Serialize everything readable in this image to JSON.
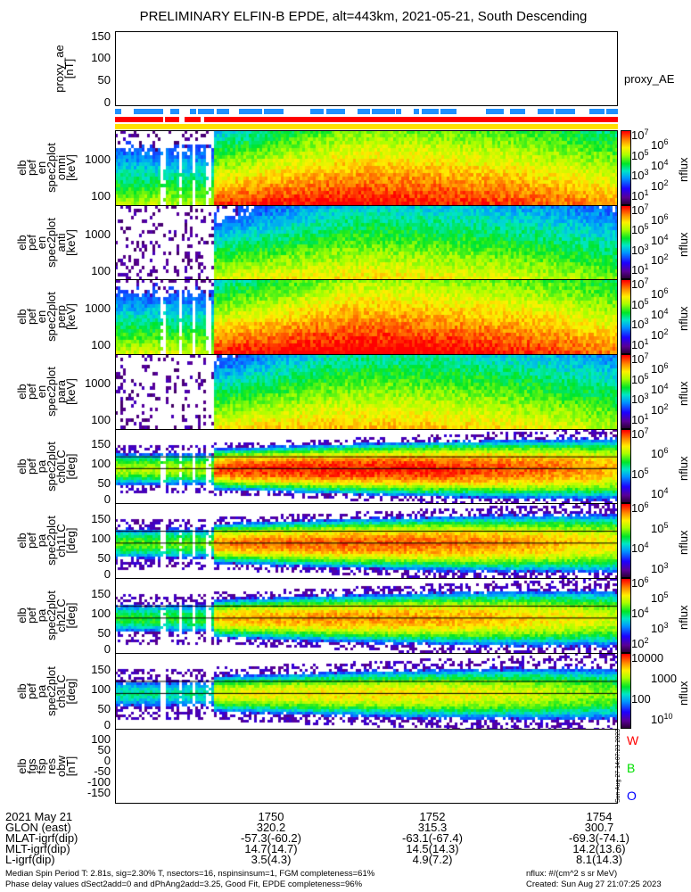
{
  "title": "PRELIMINARY ELFIN-B EPDE, alt=443km, 2021-05-21, South Descending",
  "chart_data": {
    "type": "line+heatmap",
    "x_range_min": [
      48.12,
      54.2
    ],
    "x_ticks": [
      "1750",
      "1752",
      "1754"
    ],
    "x_tick_values": [
      50,
      52,
      54
    ],
    "proxy_ae": {
      "ylabel": [
        "proxy_ae",
        "[nT]"
      ],
      "yticks": [
        "150",
        "100",
        "50",
        "0"
      ],
      "ylim": [
        0,
        165
      ],
      "legend": "proxy_AE",
      "points": [
        [
          48.12,
          32
        ],
        [
          48.4,
          32
        ],
        [
          48.4,
          35
        ],
        [
          49.1,
          35
        ],
        [
          49.1,
          38
        ],
        [
          50.2,
          38
        ],
        [
          50.2,
          40
        ],
        [
          51.3,
          40
        ],
        [
          51.3,
          42
        ],
        [
          54.2,
          42
        ]
      ]
    },
    "flag_bars": {
      "colors": [
        "#1e90ff",
        "#ff0000",
        "#ffe000"
      ],
      "blue_segments": [
        [
          48.12,
          48.2
        ],
        [
          48.35,
          48.7
        ],
        [
          48.79,
          48.9
        ],
        [
          49.03,
          49.1
        ],
        [
          49.12,
          49.32
        ],
        [
          49.35,
          49.5
        ],
        [
          49.62,
          49.9
        ],
        [
          49.92,
          50.16
        ],
        [
          50.48,
          50.64
        ],
        [
          50.67,
          50.9
        ],
        [
          51.05,
          51.2
        ],
        [
          51.23,
          51.5
        ],
        [
          51.52,
          51.58
        ],
        [
          51.73,
          51.8
        ],
        [
          51.83,
          52.03
        ],
        [
          52.05,
          52.25
        ],
        [
          52.6,
          52.82
        ],
        [
          52.9,
          53.08
        ],
        [
          53.23,
          53.42
        ],
        [
          53.45,
          53.68
        ],
        [
          53.85,
          54.04
        ],
        [
          54.06,
          54.2
        ]
      ],
      "red_segments": [
        [
          48.12,
          48.7
        ],
        [
          48.72,
          48.9
        ],
        [
          48.96,
          49.15
        ],
        [
          49.2,
          54.2
        ]
      ],
      "yellow_segments": [
        [
          48.12,
          54.2
        ]
      ]
    },
    "spectrograms": [
      {
        "ylabel": [
          "elb",
          "pef",
          "en",
          "spec2plot",
          "omni",
          "[keV]"
        ],
        "yticks": [
          "1000",
          "100"
        ],
        "kind": "energy",
        "level": 0,
        "cbar": [
          "7",
          "6",
          "5",
          "4",
          "3",
          "2",
          "1"
        ],
        "cbar_label": "nflux"
      },
      {
        "ylabel": [
          "elb",
          "pef",
          "en",
          "spec2plot",
          "anti",
          "[keV]"
        ],
        "yticks": [
          "1000",
          "100"
        ],
        "kind": "energy",
        "level": -1.3,
        "cbar": [
          "7",
          "6",
          "5",
          "4",
          "3",
          "2",
          "1"
        ],
        "cbar_label": "nflux"
      },
      {
        "ylabel": [
          "elb",
          "pef",
          "en",
          "spec2plot",
          "perp",
          "[keV]"
        ],
        "yticks": [
          "1000",
          "100"
        ],
        "kind": "energy",
        "level": 0.2,
        "cbar": [
          "7",
          "6",
          "5",
          "4",
          "3",
          "2",
          "1"
        ],
        "cbar_label": "nflux"
      },
      {
        "ylabel": [
          "elb",
          "pef",
          "en",
          "spec2plot",
          "para",
          "[keV]"
        ],
        "yticks": [
          "1000",
          "100"
        ],
        "kind": "energy",
        "level": -1.0,
        "cbar": [
          "7",
          "6",
          "5",
          "4",
          "3",
          "2",
          "1"
        ],
        "cbar_label": "nflux"
      },
      {
        "ylabel": [
          "elb",
          "pef",
          "pa",
          "spec2plot",
          "ch0LC",
          "[deg]"
        ],
        "yticks": [
          "150",
          "100",
          "50",
          "0"
        ],
        "kind": "pa",
        "level": 0.1,
        "cbar": [
          "7",
          "6",
          "5",
          "4"
        ],
        "cbar_label": "nflux"
      },
      {
        "ylabel": [
          "elb",
          "pef",
          "pa",
          "spec2plot",
          "ch1LC",
          "[deg]"
        ],
        "yticks": [
          "150",
          "100",
          "50",
          "0"
        ],
        "kind": "pa",
        "level": -0.3,
        "cbar": [
          "6",
          "5",
          "4",
          "3"
        ],
        "cbar_label": "nflux"
      },
      {
        "ylabel": [
          "elb",
          "pef",
          "pa",
          "spec2plot",
          "ch2LC",
          "[deg]"
        ],
        "yticks": [
          "150",
          "100",
          "50",
          "0"
        ],
        "kind": "pa",
        "level": -0.6,
        "cbar": [
          "6",
          "5",
          "4",
          "3",
          "2"
        ],
        "cbar_label": "nflux"
      },
      {
        "ylabel": [
          "elb",
          "pef",
          "pa",
          "spec2plot",
          "ch3LC",
          "[deg]"
        ],
        "yticks": [
          "150",
          "100",
          "50",
          "0"
        ],
        "kind": "pa",
        "level": -1.1,
        "cbar": [
          "10000",
          "1000",
          "100",
          "10"
        ],
        "cbar_label": "nflux"
      }
    ],
    "fgs": {
      "ylabel": [
        "elb",
        "fgs",
        "fsp",
        "res",
        "obw",
        "[nT]"
      ],
      "yticks": [
        "100",
        "50",
        "0",
        "-50",
        "-100",
        "-150"
      ],
      "ylim": [
        -160,
        110
      ],
      "series": [
        {
          "name": "W",
          "color": "#ff0000",
          "points": [
            [
              48.12,
              -15
            ],
            [
              48.42,
              -40
            ],
            [
              48.51,
              60
            ],
            [
              48.61,
              -70
            ],
            [
              49.18,
              35
            ],
            [
              49.29,
              -45
            ],
            [
              49.47,
              -15
            ],
            [
              49.77,
              -30
            ],
            [
              49.86,
              20
            ],
            [
              49.93,
              0
            ],
            [
              50.08,
              100
            ],
            [
              50.16,
              5
            ],
            [
              50.75,
              -15
            ],
            [
              50.82,
              10
            ],
            [
              51.13,
              30
            ],
            [
              51.32,
              65
            ],
            [
              51.43,
              -20
            ],
            [
              51.88,
              -35
            ],
            [
              52.13,
              -90
            ],
            [
              52.2,
              -25
            ],
            [
              52.5,
              -35
            ],
            [
              52.56,
              25
            ],
            [
              52.6,
              -15
            ],
            [
              52.8,
              -10
            ],
            [
              52.9,
              45
            ],
            [
              53.23,
              25
            ],
            [
              53.28,
              -10
            ],
            [
              53.42,
              -5
            ],
            [
              53.71,
              -5
            ],
            [
              53.9,
              -25
            ],
            [
              54.03,
              25
            ],
            [
              54.19,
              5
            ]
          ]
        },
        {
          "name": "B",
          "color": "#00e000",
          "points": [
            [
              48.12,
              -125
            ],
            [
              48.42,
              -30
            ],
            [
              48.5,
              -25
            ],
            [
              48.58,
              5
            ],
            [
              49.18,
              40
            ],
            [
              49.29,
              35
            ],
            [
              49.47,
              30
            ],
            [
              49.77,
              35
            ],
            [
              49.86,
              25
            ],
            [
              50.16,
              20
            ],
            [
              50.75,
              10
            ],
            [
              50.82,
              0
            ],
            [
              51.34,
              -10
            ],
            [
              52.1,
              -40
            ],
            [
              52.56,
              -45
            ],
            [
              52.9,
              -35
            ],
            [
              53.37,
              -5
            ],
            [
              53.66,
              30
            ],
            [
              53.93,
              40
            ],
            [
              54.03,
              30
            ],
            [
              54.09,
              45
            ],
            [
              54.19,
              20
            ]
          ]
        },
        {
          "name": "O",
          "color": "#0000ff",
          "points": [
            [
              48.12,
              -100
            ],
            [
              48.42,
              0
            ],
            [
              48.47,
              -25
            ],
            [
              48.61,
              35
            ],
            [
              49.18,
              25
            ],
            [
              49.29,
              45
            ],
            [
              49.47,
              25
            ],
            [
              49.77,
              30
            ],
            [
              49.83,
              15
            ],
            [
              50.01,
              10
            ],
            [
              50.08,
              -15
            ],
            [
              50.13,
              5
            ],
            [
              50.75,
              5
            ],
            [
              50.8,
              -5
            ],
            [
              51.34,
              -15
            ],
            [
              51.42,
              0
            ],
            [
              52.1,
              0
            ],
            [
              52.15,
              -10
            ],
            [
              52.5,
              -10
            ],
            [
              52.56,
              -20
            ],
            [
              52.62,
              -10
            ],
            [
              52.9,
              -15
            ],
            [
              53.23,
              -5
            ],
            [
              53.37,
              10
            ],
            [
              53.71,
              10
            ],
            [
              54.19,
              -10
            ]
          ]
        }
      ],
      "side_stamp": "Sun Aug 27 14:07:23 2023"
    }
  },
  "info": {
    "row_labels": [
      "2021 May 21",
      "GLON (east)",
      "MLAT-igrf(dip)",
      "MLT-igrf(dip)",
      "L-igrf(dip)"
    ],
    "columns": [
      [
        "1750",
        "320.2",
        "-57.3(-60.2)",
        "14.7(14.7)",
        "3.5(4.3)"
      ],
      [
        "1752",
        "315.3",
        "-63.1(-67.4)",
        "14.5(14.3)",
        "4.9(7.2)"
      ],
      [
        "1754",
        "300.7",
        "-69.3(-74.1)",
        "14.2(13.6)",
        "8.1(14.3)"
      ]
    ],
    "footer_left": [
      "Median Spin Period T: 2.81s, sig=2.30% T, nsectors=16, nspinsinsum=1, FGM completeness=61%",
      "Phase delay values dSect2add=0 and dPhAng2add=3.25, Good Fit, EPDE completeness=96%"
    ],
    "footer_right": [
      "nflux: #/(cm^2 s sr MeV)",
      "Created: Sun Aug 27 21:07:25 2023"
    ]
  }
}
